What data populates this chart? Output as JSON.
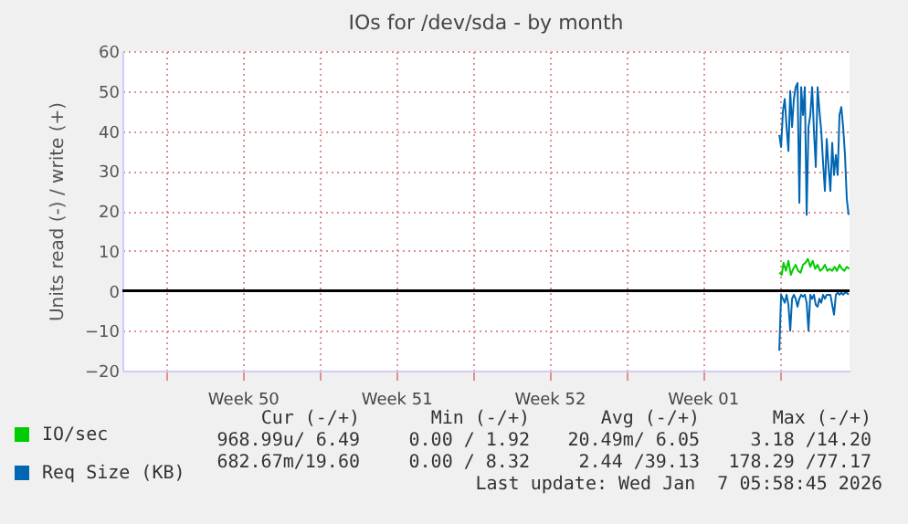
{
  "chart_data": {
    "type": "line",
    "title": "IOs for /dev/sda - by month",
    "ylabel": "Units read (-) / write (+)",
    "xlim": [
      "2025-12-06T00:00",
      "2026-01-08T05:00"
    ],
    "xticks": [
      {
        "value": "2025-12-08T00:00",
        "label": null
      },
      {
        "value": "2025-12-11T12:00",
        "label": "Week 50"
      },
      {
        "value": "2025-12-15T00:00",
        "label": null
      },
      {
        "value": "2025-12-18T12:00",
        "label": "Week 51"
      },
      {
        "value": "2025-12-22T00:00",
        "label": null
      },
      {
        "value": "2025-12-25T12:00",
        "label": "Week 52"
      },
      {
        "value": "2025-12-29T00:00",
        "label": null
      },
      {
        "value": "2026-01-01T12:00",
        "label": "Week 01"
      },
      {
        "value": "2026-01-05T00:00",
        "label": null
      }
    ],
    "ylim": [
      -20,
      60
    ],
    "yticks": [
      -20,
      -10,
      0,
      10,
      20,
      30,
      40,
      50,
      60
    ],
    "grid": true,
    "legend": "bottom left",
    "marker": "none",
    "line_style": "solid",
    "ref_lines": [
      {
        "axis": "y",
        "value": 0,
        "color": "#000000"
      }
    ],
    "series": [
      {
        "name": "Req Size (KB)",
        "color": "#0066b3",
        "x": [
          "2026-01-05T00:00",
          "2026-01-05T02:00",
          "2026-01-05T04:00",
          "2026-01-05T06:00",
          "2026-01-05T08:00",
          "2026-01-05T10:00",
          "2026-01-05T12:00",
          "2026-01-05T14:00",
          "2026-01-05T16:00",
          "2026-01-05T18:00",
          "2026-01-05T20:00",
          "2026-01-05T22:00",
          "2026-01-06T00:00",
          "2026-01-06T02:00",
          "2026-01-06T04:00",
          "2026-01-06T06:00",
          "2026-01-06T08:00",
          "2026-01-06T10:00",
          "2026-01-06T12:00",
          "2026-01-06T14:00",
          "2026-01-06T16:00",
          "2026-01-06T18:00",
          "2026-01-06T20:00",
          "2026-01-06T22:00",
          "2026-01-07T00:00",
          "2026-01-07T02:00",
          "2026-01-07T04:00",
          "2026-01-07T06:00",
          "2026-01-07T08:00",
          "2026-01-07T10:00",
          "2026-01-07T12:00",
          "2026-01-07T14:00",
          "2026-01-07T16:00",
          "2026-01-07T18:00",
          "2026-01-07T20:00",
          "2026-01-07T22:00",
          "2026-01-08T00:00",
          "2026-01-08T02:00",
          "2026-01-08T04:00"
        ],
        "values": [
          39,
          36,
          45,
          48,
          41,
          35,
          50,
          41,
          48,
          51,
          52,
          22,
          51,
          44,
          51,
          19,
          41,
          44,
          51,
          40,
          31,
          51,
          45,
          40,
          32,
          25,
          38,
          31,
          25,
          37,
          29,
          34,
          29,
          44,
          46,
          41,
          34,
          23,
          19
        ]
      },
      {
        "color": "#0066b3",
        "x": [
          "2026-01-05T00:00",
          "2026-01-05T02:00",
          "2026-01-05T04:00",
          "2026-01-05T06:00",
          "2026-01-05T08:00",
          "2026-01-05T10:00",
          "2026-01-05T12:00",
          "2026-01-05T14:00",
          "2026-01-05T16:00",
          "2026-01-05T18:00",
          "2026-01-05T20:00",
          "2026-01-05T22:00",
          "2026-01-06T00:00",
          "2026-01-06T02:00",
          "2026-01-06T04:00",
          "2026-01-06T06:00",
          "2026-01-06T08:00",
          "2026-01-06T10:00",
          "2026-01-06T12:00",
          "2026-01-06T14:00",
          "2026-01-06T16:00",
          "2026-01-06T18:00",
          "2026-01-06T20:00",
          "2026-01-06T22:00",
          "2026-01-07T00:00",
          "2026-01-07T02:00",
          "2026-01-07T04:00",
          "2026-01-07T06:00",
          "2026-01-07T08:00",
          "2026-01-07T10:00",
          "2026-01-07T12:00",
          "2026-01-07T14:00",
          "2026-01-07T16:00",
          "2026-01-07T18:00",
          "2026-01-07T20:00",
          "2026-01-07T22:00",
          "2026-01-08T00:00",
          "2026-01-08T02:00",
          "2026-01-08T04:00"
        ],
        "values": [
          -15,
          -1,
          -2,
          -3,
          -1,
          -3.5,
          -10,
          -2,
          -1,
          -2,
          -4,
          -2,
          -1,
          -1.5,
          -1,
          -3,
          -10,
          -1,
          -2,
          -1,
          -3.5,
          -4,
          -2,
          -3,
          -1,
          -2,
          -1,
          -1,
          -1,
          -3.5,
          -6,
          -1,
          -0.5,
          -1,
          -0.5,
          -1,
          -0.5,
          -0.5,
          -1
        ]
      },
      {
        "name": "IO/sec",
        "color": "#00cc00",
        "x": [
          "2026-01-05T00:00",
          "2026-01-05T02:40",
          "2026-01-05T04:40",
          "2026-01-05T07:20",
          "2026-01-05T10:00",
          "2026-01-05T12:40",
          "2026-01-05T15:20",
          "2026-01-05T18:00",
          "2026-01-05T20:40",
          "2026-01-05T23:20",
          "2026-01-06T02:00",
          "2026-01-06T04:40",
          "2026-01-06T07:20",
          "2026-01-06T10:00",
          "2026-01-06T12:40",
          "2026-01-06T15:20",
          "2026-01-06T18:00",
          "2026-01-06T20:40",
          "2026-01-06T23:20",
          "2026-01-07T02:00",
          "2026-01-07T04:40",
          "2026-01-07T07:20",
          "2026-01-07T10:00",
          "2026-01-07T12:40",
          "2026-01-07T15:20",
          "2026-01-07T18:00",
          "2026-01-07T20:40",
          "2026-01-07T23:20",
          "2026-01-08T02:00",
          "2026-01-08T04:40"
        ],
        "values": [
          4.5,
          4,
          7,
          5,
          7.5,
          4,
          5.5,
          6.5,
          5,
          4.5,
          6.5,
          7,
          8,
          6,
          7.5,
          5.5,
          6.5,
          5,
          5.5,
          6.5,
          5,
          5.5,
          5,
          6,
          5,
          6.5,
          5.5,
          5,
          6,
          5.5
        ]
      }
    ],
    "annotations": [
      "Cur (-/+)",
      "Min (-/+)",
      "Avg (-/+)",
      "Max (-/+)",
      "968.99u/ 6.49",
      "0.00 / 1.92",
      "20.49m/ 6.05",
      "3.18 /14.20",
      "682.67m/19.60",
      "0.00 / 8.32",
      "2.44 /39.13",
      "178.29 /77.17",
      "Last update: Wed Jan  7 05:58:45 2026"
    ]
  }
}
